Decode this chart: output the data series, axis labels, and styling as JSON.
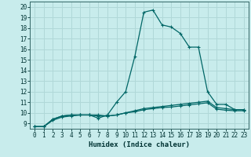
{
  "xlabel": "Humidex (Indice chaleur)",
  "bg_color": "#c8ecec",
  "grid_color": "#b0d8d8",
  "line_color": "#006666",
  "xlim": [
    -0.5,
    23.5
  ],
  "ylim": [
    8.5,
    20.5
  ],
  "xticks": [
    0,
    1,
    2,
    3,
    4,
    5,
    6,
    7,
    8,
    9,
    10,
    11,
    12,
    13,
    14,
    15,
    16,
    17,
    18,
    19,
    20,
    21,
    22,
    23
  ],
  "yticks": [
    9,
    10,
    11,
    12,
    13,
    14,
    15,
    16,
    17,
    18,
    19,
    20
  ],
  "series": [
    {
      "x": [
        0,
        1,
        2,
        3,
        4,
        5,
        6,
        7,
        8,
        9,
        10,
        11,
        12,
        13,
        14,
        15,
        16,
        17,
        18,
        19,
        20,
        21,
        22,
        23
      ],
      "y": [
        8.7,
        8.7,
        9.4,
        9.7,
        9.8,
        9.8,
        9.8,
        9.8,
        9.7,
        9.8,
        10.0,
        10.2,
        10.4,
        10.5,
        10.6,
        10.7,
        10.8,
        10.9,
        11.0,
        11.1,
        10.5,
        10.4,
        10.3,
        10.3
      ]
    },
    {
      "x": [
        0,
        1,
        2,
        3,
        4,
        5,
        6,
        7,
        8,
        9,
        10,
        11,
        12,
        13,
        14,
        15,
        16,
        17,
        18,
        19,
        20,
        21,
        22,
        23
      ],
      "y": [
        8.7,
        8.7,
        9.4,
        9.7,
        9.8,
        9.8,
        9.8,
        9.5,
        9.8,
        11.0,
        12.0,
        15.3,
        19.5,
        19.7,
        18.3,
        18.1,
        17.5,
        16.2,
        16.2,
        12.0,
        10.8,
        10.8,
        10.3,
        10.3
      ]
    },
    {
      "x": [
        0,
        1,
        2,
        3,
        4,
        5,
        6,
        7,
        8,
        9,
        10,
        11,
        12,
        13,
        14,
        15,
        16,
        17,
        18,
        19,
        20,
        21,
        22,
        23
      ],
      "y": [
        8.7,
        8.7,
        9.3,
        9.6,
        9.7,
        9.8,
        9.8,
        9.7,
        9.7,
        9.8,
        10.0,
        10.1,
        10.3,
        10.4,
        10.5,
        10.55,
        10.65,
        10.75,
        10.85,
        10.95,
        10.35,
        10.25,
        10.2,
        10.2
      ]
    }
  ]
}
